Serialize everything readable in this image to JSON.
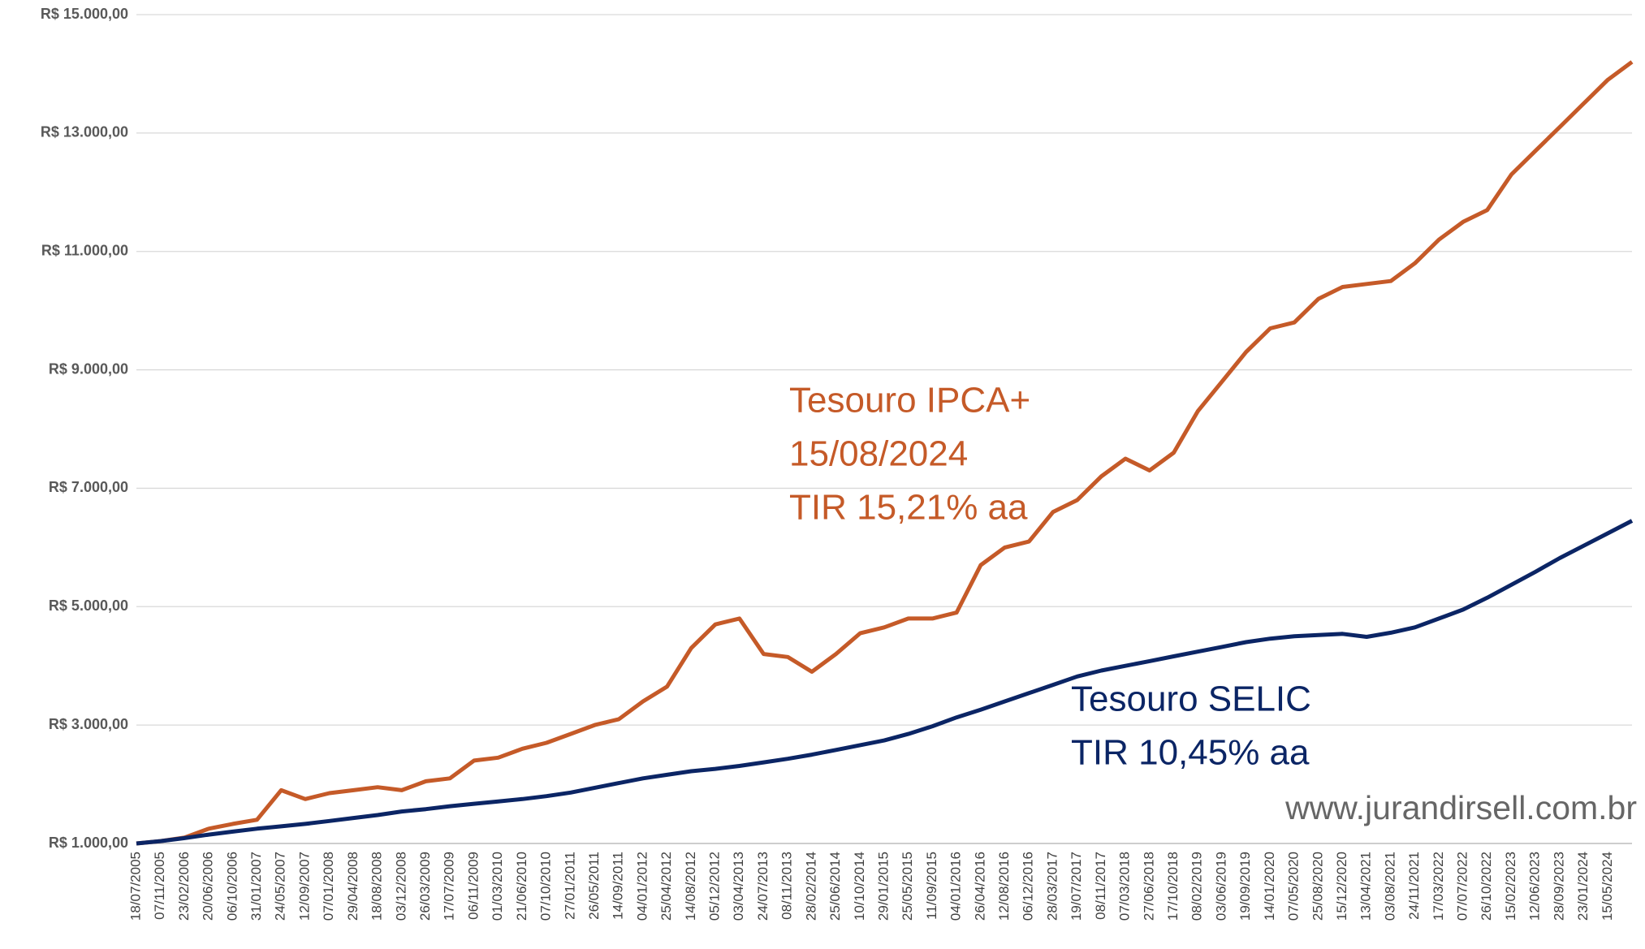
{
  "chart_data": {
    "type": "line",
    "categories": [
      "18/07/2005",
      "07/11/2005",
      "23/02/2006",
      "20/06/2006",
      "06/10/2006",
      "31/01/2007",
      "24/05/2007",
      "12/09/2007",
      "07/01/2008",
      "29/04/2008",
      "18/08/2008",
      "03/12/2008",
      "26/03/2009",
      "17/07/2009",
      "06/11/2009",
      "01/03/2010",
      "21/06/2010",
      "07/10/2010",
      "27/01/2011",
      "26/05/2011",
      "14/09/2011",
      "04/01/2012",
      "25/04/2012",
      "14/08/2012",
      "05/12/2012",
      "03/04/2013",
      "24/07/2013",
      "08/11/2013",
      "28/02/2014",
      "25/06/2014",
      "10/10/2014",
      "29/01/2015",
      "25/05/2015",
      "11/09/2015",
      "04/01/2016",
      "26/04/2016",
      "12/08/2016",
      "06/12/2016",
      "28/03/2017",
      "19/07/2017",
      "08/11/2017",
      "07/03/2018",
      "27/06/2018",
      "17/10/2018",
      "08/02/2019",
      "03/06/2019",
      "19/09/2019",
      "14/01/2020",
      "07/05/2020",
      "25/08/2020",
      "15/12/2020",
      "13/04/2021",
      "03/08/2021",
      "24/11/2021",
      "17/03/2022",
      "07/07/2022",
      "26/10/2022",
      "15/02/2023",
      "12/06/2023",
      "28/09/2023",
      "23/01/2024",
      "15/05/2024",
      null
    ],
    "series": [
      {
        "name": "Tesouro IPCA+",
        "color": "#c55a28",
        "values": [
          1000,
          1040,
          1100,
          1250,
          1330,
          1400,
          1900,
          1750,
          1850,
          1900,
          1950,
          1900,
          2050,
          2100,
          2400,
          2450,
          2600,
          2700,
          2850,
          3000,
          3100,
          3400,
          3650,
          4300,
          4700,
          4800,
          4200,
          4150,
          3900,
          4200,
          4550,
          4650,
          4800,
          4800,
          4900,
          5700,
          6000,
          6100,
          6600,
          6800,
          7200,
          7500,
          7300,
          7600,
          8300,
          8800,
          9300,
          9700,
          9800,
          10200,
          10400,
          10450,
          10500,
          10800,
          11200,
          11500,
          11700,
          12300,
          12700,
          13100,
          13500,
          13900,
          14200
        ]
      },
      {
        "name": "Tesouro SELIC",
        "color": "#0b2565",
        "values": [
          1000,
          1040,
          1090,
          1150,
          1200,
          1250,
          1290,
          1330,
          1380,
          1430,
          1480,
          1540,
          1580,
          1630,
          1670,
          1710,
          1750,
          1800,
          1860,
          1940,
          2020,
          2100,
          2160,
          2220,
          2260,
          2310,
          2370,
          2430,
          2500,
          2580,
          2660,
          2740,
          2850,
          2980,
          3130,
          3260,
          3400,
          3540,
          3680,
          3820,
          3920,
          4000,
          4080,
          4160,
          4240,
          4320,
          4400,
          4460,
          4500,
          4520,
          4540,
          4490,
          4560,
          4650,
          4800,
          4950,
          5150,
          5370,
          5590,
          5820,
          6030,
          6240,
          6450
        ]
      }
    ],
    "ylim": [
      1000,
      15000
    ],
    "yticks": [
      {
        "value": 1000,
        "label": "R$ 1.000,00"
      },
      {
        "value": 3000,
        "label": "R$ 3.000,00"
      },
      {
        "value": 5000,
        "label": "R$ 5.000,00"
      },
      {
        "value": 7000,
        "label": "R$ 7.000,00"
      },
      {
        "value": 9000,
        "label": "R$ 9.000,00"
      },
      {
        "value": 11000,
        "label": "R$ 11.000,00"
      },
      {
        "value": 13000,
        "label": "R$ 13.000,00"
      },
      {
        "value": 15000,
        "label": "R$ 15.000,00"
      }
    ],
    "grid": true,
    "annotations": [
      "Tesouro IPCA+",
      "15/08/2024",
      "TIR 15,21% aa",
      "Tesouro SELIC",
      "TIR 10,45% aa"
    ],
    "watermark": "www.jurandirsell.com.br"
  }
}
